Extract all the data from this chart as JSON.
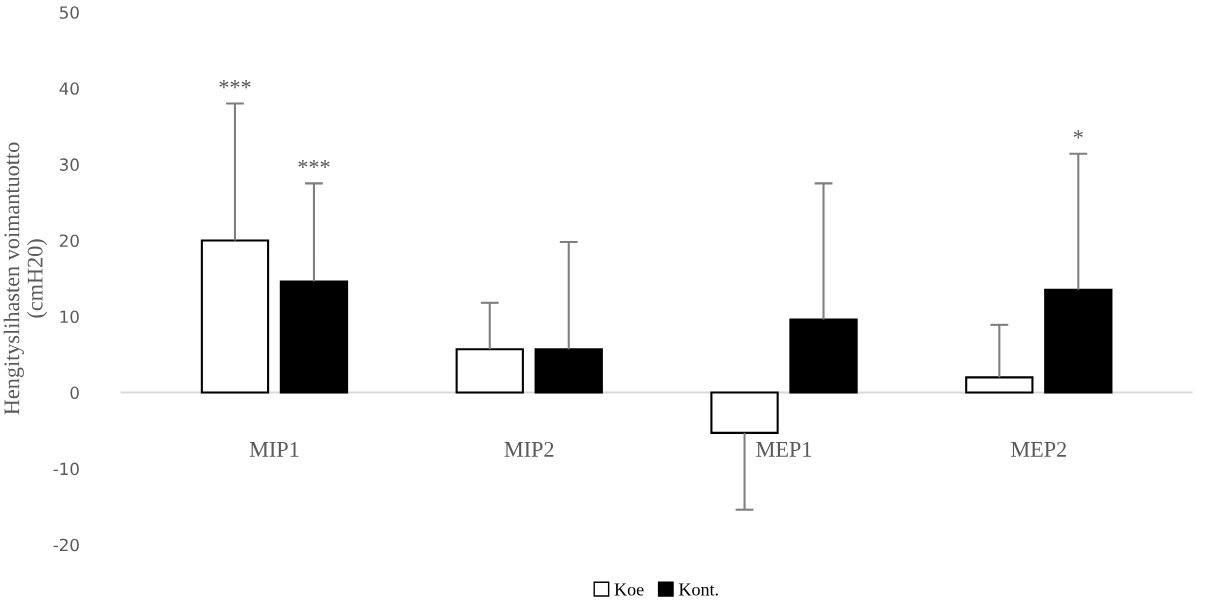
{
  "chart_data": {
    "type": "bar",
    "ylabel": "Hengityslihasten voimantuotto\n(cmH20)",
    "categories": [
      "MIP1",
      "MIP2",
      "MEP1",
      "MEP2"
    ],
    "series": [
      {
        "name": "Koe",
        "color": "#ffffff",
        "values": [
          20.0,
          5.7,
          -5.3,
          2.0
        ],
        "errors": [
          [
            20.0,
            38.0
          ],
          [
            5.7,
            11.8
          ],
          [
            -15.4,
            -5.3
          ],
          [
            2.0,
            8.9
          ]
        ]
      },
      {
        "name": "Kont.",
        "color": "#000000",
        "values": [
          14.6,
          5.7,
          9.6,
          13.5
        ],
        "errors": [
          [
            14.6,
            27.5
          ],
          [
            5.7,
            19.8
          ],
          [
            9.6,
            27.5
          ],
          [
            13.5,
            31.4
          ]
        ]
      }
    ],
    "ylim": [
      -20,
      50
    ],
    "yticks": [
      -20,
      -10,
      0,
      10,
      20,
      30,
      40,
      50
    ],
    "legend": "bottom",
    "annotations": [
      "***",
      "***",
      "*"
    ]
  }
}
